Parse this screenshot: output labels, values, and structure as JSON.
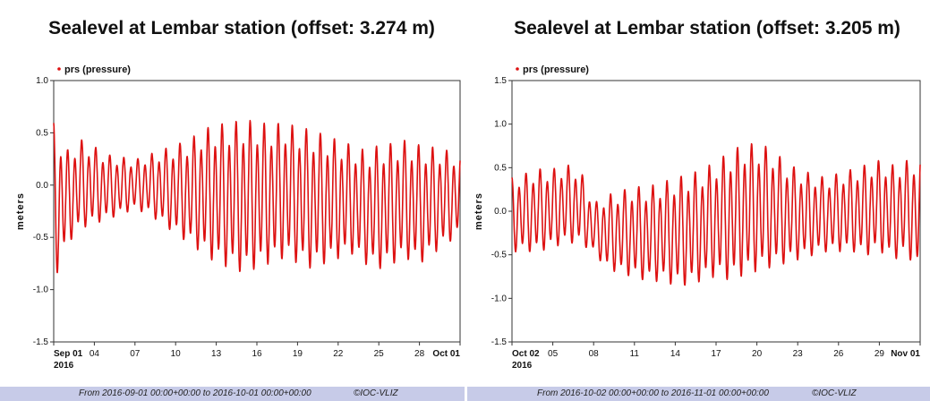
{
  "chart_data": [
    {
      "type": "line",
      "title": "Sealevel at Lembar station (offset: 3.274 m)",
      "ylabel": "meters",
      "ylim": [
        -1.5,
        1.0
      ],
      "yticks": [
        "1.0",
        "0.5",
        "0.0",
        "-0.5",
        "-1.0",
        "-1.5"
      ],
      "xticks": [
        "Sep 01",
        "04",
        "07",
        "10",
        "13",
        "16",
        "19",
        "22",
        "25",
        "28",
        "Oct 01"
      ],
      "xtick_year": "2016",
      "legend": [
        "prs (pressure)"
      ],
      "series_color": "#dd1111",
      "series": [
        {
          "name": "prs (pressure)",
          "x_days": [
            0,
            1,
            2,
            3,
            4,
            5,
            6,
            7,
            8,
            9,
            10,
            11,
            12,
            13,
            14,
            15,
            16,
            17,
            18,
            19,
            20,
            21,
            22,
            23,
            24,
            25,
            26,
            27,
            28,
            29,
            30
          ],
          "high": [
            0.62,
            0.35,
            0.45,
            0.38,
            0.3,
            0.28,
            0.25,
            0.3,
            0.35,
            0.4,
            0.45,
            0.55,
            0.6,
            0.62,
            0.65,
            0.63,
            0.6,
            0.62,
            0.58,
            0.55,
            0.5,
            0.45,
            0.4,
            0.35,
            0.4,
            0.42,
            0.45,
            0.4,
            0.38,
            0.35,
            0.3
          ],
          "low": [
            -1.0,
            -0.6,
            -0.45,
            -0.4,
            -0.35,
            -0.3,
            -0.25,
            -0.3,
            -0.4,
            -0.5,
            -0.6,
            -0.7,
            -0.8,
            -0.85,
            -0.9,
            -0.85,
            -0.8,
            -0.75,
            -0.8,
            -0.85,
            -0.8,
            -0.75,
            -0.7,
            -0.8,
            -0.85,
            -0.8,
            -0.75,
            -0.8,
            -0.7,
            -0.6,
            -0.5
          ]
        }
      ],
      "footer": "From 2016-09-01 00:00+00:00 to 2016-10-01 00:00+00:00",
      "credit": "©IOC-VLIZ"
    },
    {
      "type": "line",
      "title": "Sealevel at Lembar station (offset: 3.205 m)",
      "ylabel": "meters",
      "ylim": [
        -1.5,
        1.5
      ],
      "yticks": [
        "1.5",
        "1.0",
        "0.5",
        "0.0",
        "-0.5",
        "-1.0",
        "-1.5"
      ],
      "xticks": [
        "Oct 02",
        "05",
        "08",
        "11",
        "14",
        "17",
        "20",
        "23",
        "26",
        "29",
        "Nov 01"
      ],
      "xtick_year": "2016",
      "legend": [
        "prs (pressure)"
      ],
      "series_color": "#dd1111",
      "series": [
        {
          "name": "prs (pressure)",
          "x_days": [
            0,
            1,
            2,
            3,
            4,
            5,
            6,
            7,
            8,
            9,
            10,
            11,
            12,
            13,
            14,
            15,
            16,
            17,
            18,
            19,
            20,
            21,
            22,
            23,
            24,
            25,
            26,
            27,
            28,
            29,
            30
          ],
          "high": [
            0.4,
            0.45,
            0.5,
            0.5,
            0.55,
            0.5,
            0.1,
            0.2,
            0.25,
            0.3,
            0.3,
            0.35,
            0.4,
            0.45,
            0.5,
            0.6,
            0.7,
            0.8,
            0.8,
            0.75,
            0.6,
            0.5,
            0.45,
            0.4,
            0.45,
            0.5,
            0.55,
            0.6,
            0.55,
            0.6,
            0.65
          ],
          "low": [
            -0.5,
            -0.5,
            -0.5,
            -0.45,
            -0.4,
            -0.4,
            -0.5,
            -0.7,
            -0.75,
            -0.8,
            -0.85,
            -0.85,
            -0.9,
            -0.9,
            -0.85,
            -0.8,
            -0.85,
            -0.8,
            -0.75,
            -0.7,
            -0.65,
            -0.6,
            -0.55,
            -0.5,
            -0.5,
            -0.5,
            -0.55,
            -0.5,
            -0.6,
            -0.55,
            -0.75
          ]
        }
      ],
      "footer": "From 2016-10-02 00:00+00:00 to 2016-11-01 00:00+00:00",
      "credit": "©IOC-VLIZ"
    }
  ]
}
